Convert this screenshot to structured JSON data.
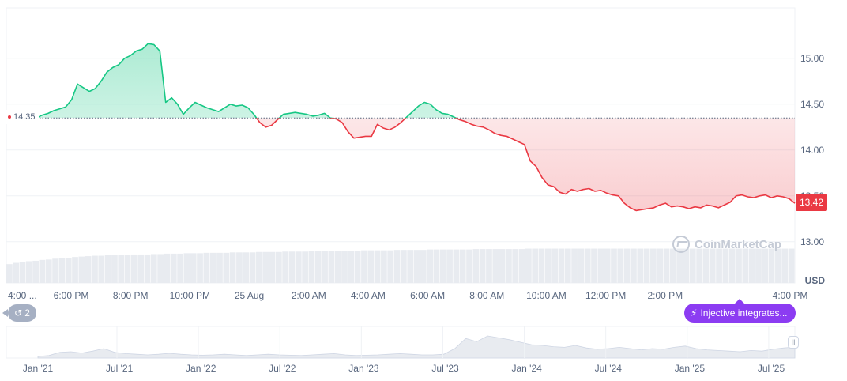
{
  "chart_data": {
    "type": "area",
    "currency": "USD",
    "baseline_label": "14.35",
    "current_price_label": "13.42",
    "y_axis": {
      "min": 12.55,
      "max": 15.55,
      "ticks": [
        "13.00",
        "13.50",
        "14.00",
        "14.50",
        "15.00"
      ],
      "unit_label": "USD"
    },
    "x_axis": {
      "labels": [
        "4:00 ...",
        "6:00 PM",
        "8:00 PM",
        "10:00 PM",
        "25 Aug",
        "2:00 AM",
        "4:00 AM",
        "6:00 AM",
        "8:00 AM",
        "10:00 AM",
        "12:00 PM",
        "2:00 PM",
        "4:00 PM"
      ]
    },
    "baseline": 14.35,
    "series": [
      {
        "values": [
          14.35,
          14.38,
          14.4,
          14.43,
          14.45,
          14.47,
          14.55,
          14.72,
          14.68,
          14.64,
          14.67,
          14.75,
          14.85,
          14.9,
          14.93,
          15.0,
          15.03,
          15.08,
          15.1,
          15.16,
          15.15,
          15.08,
          14.52,
          14.57,
          14.5,
          14.39,
          14.46,
          14.52,
          14.49,
          14.46,
          14.44,
          14.42,
          14.46,
          14.5,
          14.48,
          14.49,
          14.46,
          14.39,
          14.3,
          14.25,
          14.27,
          14.33,
          14.39,
          14.4,
          14.41,
          14.4,
          14.39,
          14.37,
          14.38,
          14.4,
          14.35,
          14.34,
          14.3,
          14.2,
          14.13,
          14.14,
          14.15,
          14.15,
          14.28,
          14.24,
          14.22,
          14.25,
          14.3,
          14.36,
          14.42,
          14.48,
          14.52,
          14.5,
          14.44,
          14.4,
          14.39,
          14.36,
          14.33,
          14.31,
          14.28,
          14.26,
          14.25,
          14.22,
          14.18,
          14.16,
          14.15,
          14.12,
          14.09,
          14.06,
          13.88,
          13.82,
          13.7,
          13.62,
          13.6,
          13.54,
          13.52,
          13.57,
          13.55,
          13.57,
          13.58,
          13.55,
          13.56,
          13.53,
          13.51,
          13.5,
          13.42,
          13.37,
          13.34,
          13.35,
          13.36,
          13.37,
          13.4,
          13.42,
          13.38,
          13.39,
          13.38,
          13.36,
          13.38,
          13.37,
          13.4,
          13.39,
          13.37,
          13.4,
          13.43,
          13.5,
          13.51,
          13.49,
          13.48,
          13.5,
          13.51,
          13.48,
          13.5,
          13.49,
          13.47,
          13.42
        ]
      }
    ],
    "volume": {
      "values": [
        0.45,
        0.48,
        0.5,
        0.52,
        0.53,
        0.55,
        0.56,
        0.58,
        0.6,
        0.6,
        0.62,
        0.63,
        0.64,
        0.65,
        0.65,
        0.66,
        0.66,
        0.67,
        0.67,
        0.68,
        0.68,
        0.68,
        0.69,
        0.69,
        0.7,
        0.7,
        0.7,
        0.71,
        0.71,
        0.71,
        0.72,
        0.72,
        0.72,
        0.72,
        0.73,
        0.73,
        0.73,
        0.73,
        0.74,
        0.74,
        0.74,
        0.74,
        0.75,
        0.75,
        0.75,
        0.75,
        0.76,
        0.76,
        0.76,
        0.76,
        0.77,
        0.77,
        0.77,
        0.77,
        0.78,
        0.78,
        0.78,
        0.78,
        0.78,
        0.79,
        0.79,
        0.79,
        0.79,
        0.79,
        0.8,
        0.8,
        0.8,
        0.8,
        0.8,
        0.8,
        0.8,
        0.81,
        0.81,
        0.81,
        0.81,
        0.81,
        0.81,
        0.81,
        0.81,
        0.82,
        0.82,
        0.82,
        0.82,
        0.82,
        0.82,
        0.82,
        0.82,
        0.82,
        0.82,
        0.82,
        0.82,
        0.82,
        0.82,
        0.82,
        0.82,
        0.82,
        0.82,
        0.82,
        0.82,
        0.82,
        0.82,
        0.82,
        0.82,
        0.82,
        0.82,
        0.82,
        0.82,
        0.82,
        0.82,
        0.82,
        0.82,
        0.82,
        0.82,
        0.82,
        0.82,
        0.82,
        0.82,
        0.82,
        0.82,
        0.82
      ]
    },
    "overview": {
      "labels": [
        "Jan '21",
        "Jul '21",
        "Jan '22",
        "Jul '22",
        "Jan '23",
        "Jul '23",
        "Jan '24",
        "Jul '24",
        "Jan '25",
        "Jul '25"
      ],
      "values": [
        0.05,
        0.08,
        0.18,
        0.2,
        0.16,
        0.22,
        0.3,
        0.18,
        0.14,
        0.12,
        0.1,
        0.12,
        0.15,
        0.12,
        0.1,
        0.09,
        0.1,
        0.12,
        0.1,
        0.08,
        0.1,
        0.12,
        0.1,
        0.09,
        0.08,
        0.1,
        0.12,
        0.14,
        0.1,
        0.08,
        0.09,
        0.1,
        0.12,
        0.14,
        0.12,
        0.1,
        0.1,
        0.12,
        0.3,
        0.62,
        0.52,
        0.7,
        0.64,
        0.58,
        0.5,
        0.42,
        0.4,
        0.36,
        0.34,
        0.4,
        0.32,
        0.28,
        0.3,
        0.34,
        0.3,
        0.26,
        0.3,
        0.28,
        0.34,
        0.38,
        0.3,
        0.26,
        0.24,
        0.22,
        0.2,
        0.24,
        0.22,
        0.28,
        0.32,
        0.35
      ],
      "colors": {
        "area": "#e8ebf0",
        "line": "#cfd6e4"
      }
    }
  },
  "ui": {
    "history_count": "2",
    "history_icon": "history-icon",
    "news_label": "Injective integrates...",
    "news_icon": "bolt-icon",
    "watermark_text": "CoinMarketCap",
    "scroll_handle_text": "II"
  },
  "colors": {
    "up": "#16c784",
    "down": "#ea3943",
    "grid": "#eff2f5",
    "axis_text": "#58667e",
    "volume": "#e8ebf0",
    "news": "#8c3cf2"
  }
}
